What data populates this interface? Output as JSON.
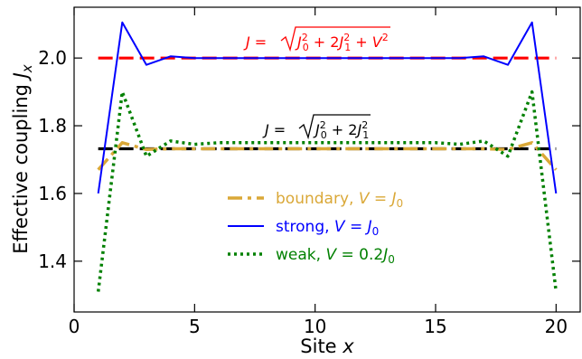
{
  "chart_data": {
    "type": "line",
    "xlabel": "Site x",
    "ylabel": "Effective coupling J_x",
    "xlim": [
      0,
      21
    ],
    "ylim": [
      1.25,
      2.15
    ],
    "xticks": [
      0,
      5,
      10,
      15,
      20
    ],
    "yticks": [
      1.4,
      1.6,
      1.8,
      2.0
    ],
    "xtick_labels": [
      "0",
      "5",
      "10",
      "15",
      "20"
    ],
    "ytick_labels": [
      "1.4",
      "1.6",
      "1.8",
      "2.0"
    ],
    "grid": false,
    "legend_position": "center",
    "reference_lines": [
      {
        "name": "J = √(J0² + 2J1² + V²)",
        "y": 2.0,
        "color": "#ff0000",
        "style": "dashed",
        "x": [
          1,
          20
        ]
      },
      {
        "name": "J = √(J0² + 2J1²)",
        "y": 1.732,
        "color": "#000000",
        "style": "dashed",
        "x": [
          1,
          20
        ]
      }
    ],
    "series": [
      {
        "name": "boundary, V = J0",
        "color": "#daa838",
        "style": "dashdot",
        "x": [
          1,
          2,
          3,
          4,
          5,
          6,
          7,
          8,
          9,
          10,
          11,
          12,
          13,
          14,
          15,
          16,
          17,
          18,
          19,
          20
        ],
        "values": [
          1.67,
          1.75,
          1.73,
          1.732,
          1.732,
          1.732,
          1.732,
          1.732,
          1.732,
          1.732,
          1.732,
          1.732,
          1.732,
          1.732,
          1.732,
          1.732,
          1.732,
          1.73,
          1.75,
          1.67
        ]
      },
      {
        "name": "strong, V = J0",
        "color": "#0000ff",
        "style": "solid",
        "x": [
          1,
          2,
          3,
          4,
          5,
          6,
          7,
          8,
          9,
          10,
          11,
          12,
          13,
          14,
          15,
          16,
          17,
          18,
          19,
          20
        ],
        "values": [
          1.6,
          2.105,
          1.98,
          2.005,
          2.0,
          2.0,
          2.0,
          2.0,
          2.0,
          2.0,
          2.0,
          2.0,
          2.0,
          2.0,
          2.0,
          2.0,
          2.005,
          1.98,
          2.105,
          1.6
        ]
      },
      {
        "name": "weak, V = 0.2J0",
        "color": "#008000",
        "style": "dotted",
        "x": [
          1,
          2,
          3,
          4,
          5,
          6,
          7,
          8,
          9,
          10,
          11,
          12,
          13,
          14,
          15,
          16,
          17,
          18,
          19,
          20
        ],
        "values": [
          1.31,
          1.9,
          1.71,
          1.755,
          1.745,
          1.75,
          1.75,
          1.75,
          1.75,
          1.75,
          1.75,
          1.75,
          1.75,
          1.75,
          1.75,
          1.745,
          1.755,
          1.71,
          1.9,
          1.31
        ]
      }
    ]
  },
  "annotations": {
    "red_eq": {
      "lhs": "J = ",
      "a": "J",
      "a_sub": "0",
      "a_sup": "2",
      "mid1": " + 2",
      "b": "J",
      "b_sub": "1",
      "b_sup": "2",
      "mid2": " + ",
      "c": "V",
      "c_sup": "2"
    },
    "black_eq": {
      "lhs": "J = ",
      "a": "J",
      "a_sub": "0",
      "a_sup": "2",
      "mid1": " + 2",
      "b": "J",
      "b_sub": "1",
      "b_sup": "2"
    }
  },
  "legend": [
    {
      "prefix": "boundary, ",
      "var": "V",
      "eq": " = ",
      "coef": "",
      "sym": "J",
      "sub": "0"
    },
    {
      "prefix": "strong, ",
      "var": "V",
      "eq": " = ",
      "coef": "",
      "sym": "J",
      "sub": "0"
    },
    {
      "prefix": "weak, ",
      "var": "V",
      "eq": " = ",
      "coef": "0.2",
      "sym": "J",
      "sub": "0"
    }
  ],
  "axis_text": {
    "xlabel_main": "Site ",
    "xlabel_var": "x",
    "ylabel_main": "Effective coupling ",
    "ylabel_var": "J",
    "ylabel_sub": "x"
  }
}
